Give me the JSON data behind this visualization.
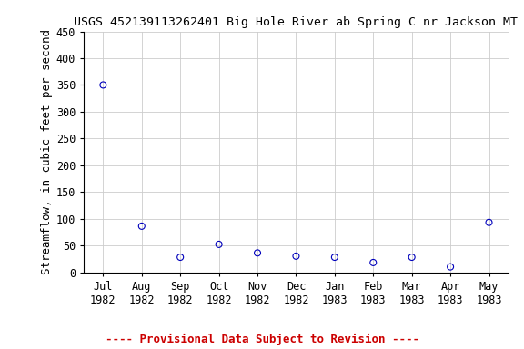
{
  "title": "USGS 452139113262401 Big Hole River ab Spring C nr Jackson MT",
  "ylabel": "Streamflow, in cubic feet per second",
  "xlabel_labels": [
    "Jul\n1982",
    "Aug\n1982",
    "Sep\n1982",
    "Oct\n1982",
    "Nov\n1982",
    "Dec\n1982",
    "Jan\n1983",
    "Feb\n1983",
    "Mar\n1983",
    "Apr\n1983",
    "May\n1983"
  ],
  "x_values": [
    0,
    1,
    2,
    3,
    4,
    5,
    6,
    7,
    8,
    9,
    10
  ],
  "y_values": [
    350,
    86,
    28,
    52,
    36,
    30,
    28,
    18,
    28,
    10,
    93
  ],
  "ylim": [
    0,
    450
  ],
  "yticks": [
    0,
    50,
    100,
    150,
    200,
    250,
    300,
    350,
    400,
    450
  ],
  "marker_color": "#0000bb",
  "marker_size": 5,
  "grid_color": "#cccccc",
  "background_color": "#ffffff",
  "title_fontsize": 9.5,
  "axis_fontsize": 9,
  "tick_fontsize": 8.5,
  "footnote": "---- Provisional Data Subject to Revision ----",
  "footnote_color": "#cc0000",
  "footnote_fontsize": 9
}
